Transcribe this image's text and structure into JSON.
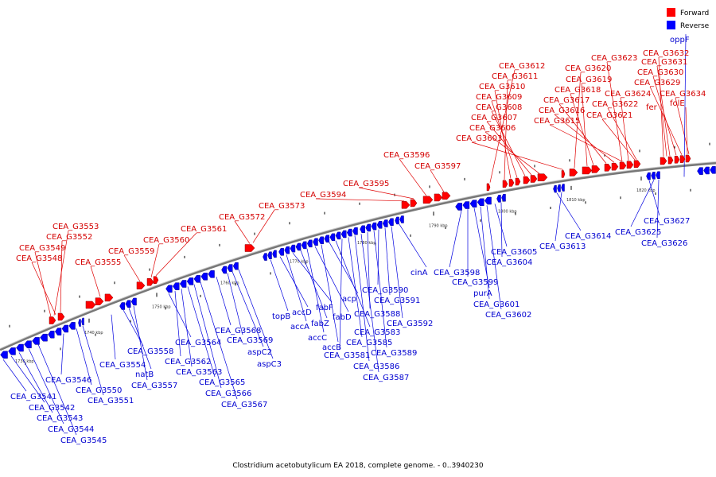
{
  "legend": {
    "forward_label": "Forward",
    "reverse_label": "Reverse",
    "forward_color": "#ff0000",
    "reverse_color": "#0000ff"
  },
  "caption": "Clostridium acetobutylicum EA 2018, complete genome. - 0..3940230",
  "ticks": [
    "1730 kbp",
    "1740 kbp",
    "1750 kbp",
    "1760 kbp",
    "1770 kbp",
    "1780 kbp",
    "1790 kbp",
    "1800 kbp",
    "1810 kbp",
    "1820 kbp"
  ],
  "forward_labels": [
    "CEA_G3553",
    "CEA_G3552",
    "CEA_G3549",
    "CEA_G3548",
    "CEA_G3555",
    "CEA_G3559",
    "CEA_G3560",
    "CEA_G3561",
    "CEA_G3572",
    "CEA_G3573",
    "CEA_G3594",
    "CEA_G3595",
    "CEA_G3596",
    "CEA_G3597",
    "CEA_G3612",
    "CEA_G3611",
    "CEA_G3610",
    "CEA_G3609",
    "CEA_G3608",
    "CEA_G3607",
    "CEA_G3606",
    "CEA_G3603",
    "CEA_G3620",
    "CEA_G3619",
    "CEA_G3618",
    "CEA_G3617",
    "CEA_G3616",
    "CEA_G3615",
    "CEA_G3623",
    "CEA_G3624",
    "CEA_G3622",
    "CEA_G3621",
    "CEA_G3632",
    "CEA_G3631",
    "CEA_G3630",
    "CEA_G3629",
    "CEA_G3634",
    "fer",
    "folE"
  ],
  "reverse_labels": [
    "oppF",
    "CEA_G3541",
    "CEA_G3542",
    "CEA_G3543",
    "CEA_G3544",
    "CEA_G3545",
    "CEA_G3546",
    "CEA_G3550",
    "CEA_G3551",
    "CEA_G3554",
    "CEA_G3558",
    "natB",
    "CEA_G3557",
    "CEA_G3564",
    "CEA_G3562",
    "CEA_G3563",
    "CEA_G3565",
    "CEA_G3566",
    "CEA_G3567",
    "CEA_G3568",
    "CEA_G3569",
    "aspC2",
    "aspC3",
    "topB",
    "accD",
    "accA",
    "fabF",
    "fabZ",
    "accC",
    "fabD",
    "accB",
    "acp",
    "CEA_G3583",
    "CEA_G3581",
    "CEA_G3585",
    "CEA_G3586",
    "CEA_G3587",
    "CEA_G3588",
    "CEA_G3589",
    "CEA_G3590",
    "CEA_G3591",
    "CEA_G3592",
    "cinA",
    "CEA_G3598",
    "CEA_G3599",
    "purA",
    "CEA_G3601",
    "CEA_G3602",
    "CEA_G3605",
    "CEA_G3604",
    "CEA_G3614",
    "CEA_G3613",
    "CEA_G3627",
    "CEA_G3625",
    "CEA_G3626"
  ]
}
